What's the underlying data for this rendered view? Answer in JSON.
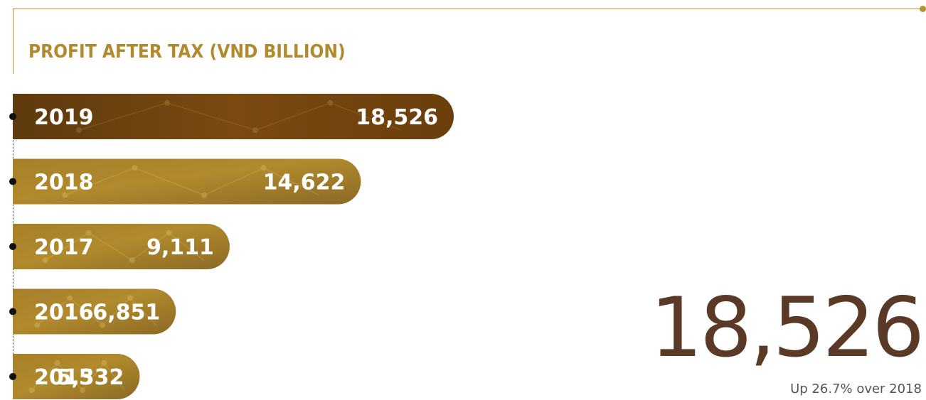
{
  "chart_data": {
    "type": "bar",
    "orientation": "horizontal",
    "title": "PROFIT AFTER TAX (VND BILLION)",
    "categories": [
      "2019",
      "2018",
      "2017",
      "2016",
      "2015"
    ],
    "values": [
      18526,
      14622,
      9111,
      6851,
      5332
    ],
    "value_labels": [
      "18,526",
      "14,622",
      "9,111",
      "6,851",
      "5,332"
    ],
    "highlight_category": "2019",
    "colors": {
      "highlight": "#7a4a10",
      "bar": "#b08a2c",
      "title": "#b08a2c",
      "frame": "#b4922e"
    }
  },
  "highlight": {
    "value": "18,526",
    "caption": "Up 26.7% over 2018"
  }
}
